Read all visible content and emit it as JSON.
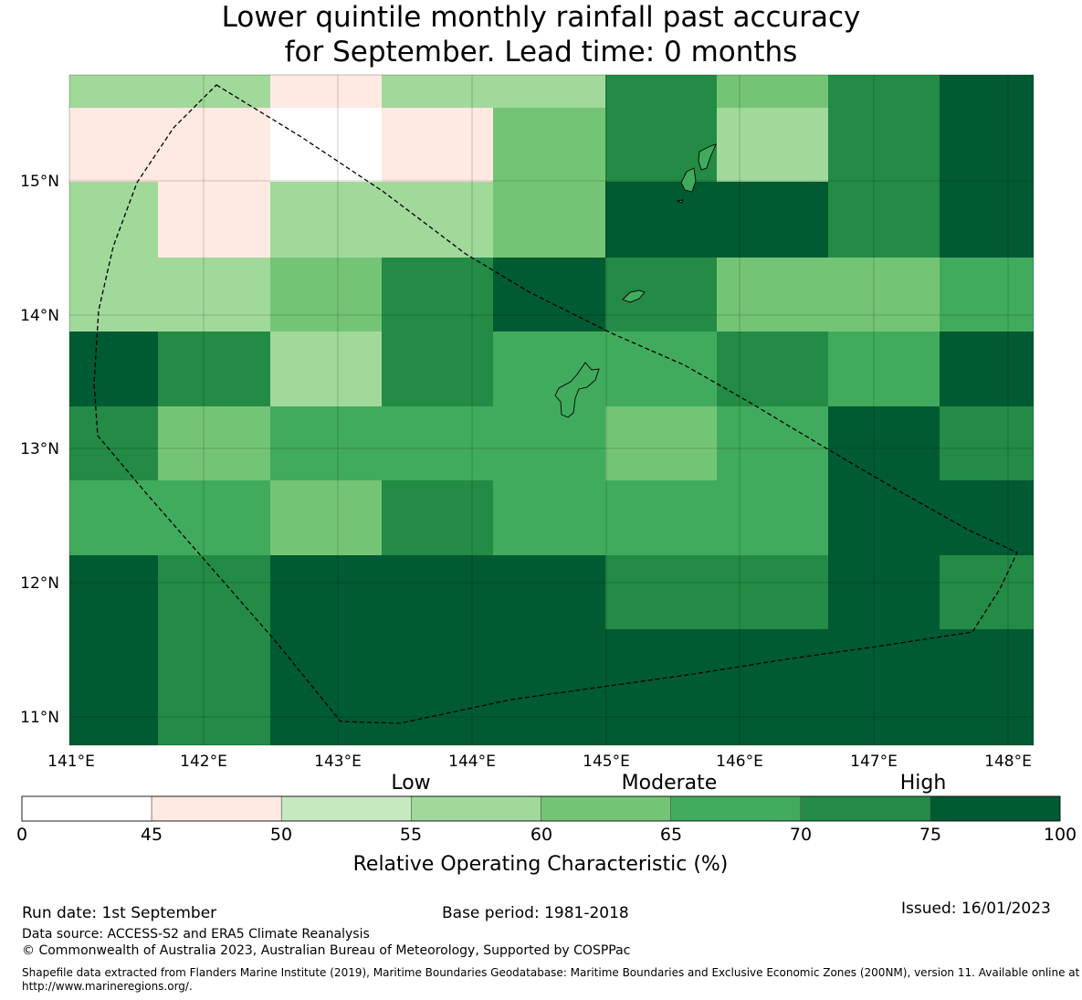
{
  "title": {
    "line1": "Lower quintile monthly rainfall past accuracy",
    "line2": "for September. Lead time: 0 months"
  },
  "map": {
    "lon_ticks": [
      "141°E",
      "142°E",
      "143°E",
      "144°E",
      "145°E",
      "146°E",
      "147°E",
      "148°E"
    ],
    "lat_ticks": [
      "15°N",
      "14°N",
      "13°N",
      "12°N",
      "11°N"
    ],
    "grid_rows": [
      [
        55,
        57.5,
        45,
        55,
        57.5,
        70,
        62.5,
        70,
        80
      ],
      [
        45,
        45,
        0,
        45,
        62.5,
        70,
        57.5,
        70,
        80
      ],
      [
        55,
        45,
        55,
        55,
        62.5,
        80,
        80,
        70,
        80
      ],
      [
        55,
        55,
        62.5,
        72.5,
        80,
        72.5,
        62.5,
        62.5,
        67.5
      ],
      [
        80,
        72.5,
        57.5,
        72.5,
        67.5,
        67.5,
        72.5,
        67.5,
        80
      ],
      [
        72.5,
        62.5,
        67.5,
        67.5,
        67.5,
        62.5,
        67.5,
        80,
        72.5
      ],
      [
        67.5,
        67.5,
        62.5,
        72.5,
        67.5,
        67.5,
        67.5,
        80,
        80
      ],
      [
        80,
        72.5,
        80,
        80,
        80,
        72.5,
        72.5,
        80,
        72.5
      ],
      [
        80,
        72.5,
        80,
        80,
        80,
        80,
        80,
        80,
        80
      ]
    ]
  },
  "colorbar": {
    "category_labels": [
      "Low",
      "Moderate",
      "High"
    ],
    "tick_labels": [
      "0",
      "45",
      "50",
      "55",
      "60",
      "65",
      "70",
      "75",
      "100"
    ],
    "colors": [
      "#ffffff",
      "#feeae2",
      "#c7e9c0",
      "#a1d99b",
      "#74c476",
      "#41ab5d",
      "#238b45",
      "#005a32"
    ],
    "axis_label": "Relative Operating Characteristic (%)"
  },
  "footer": {
    "run_date": "Run date: 1st September",
    "base_period": "Base period: 1981-2018",
    "issued": "Issued: 16/01/2023",
    "data_source": "Data source: ACCESS-S2 and ERA5 Climate Reanalysis",
    "copyright": "© Commonwealth of Australia 2023, Australian Bureau of Meteorology, Supported by COSPPac",
    "shapefile": "Shapefile data extracted from Flanders Marine Institute (2019), Maritime Boundaries Geodatabase: Maritime Boundaries and Exclusive Economic Zones (200NM), version 11. Available online at http://www.marineregions.org/."
  }
}
